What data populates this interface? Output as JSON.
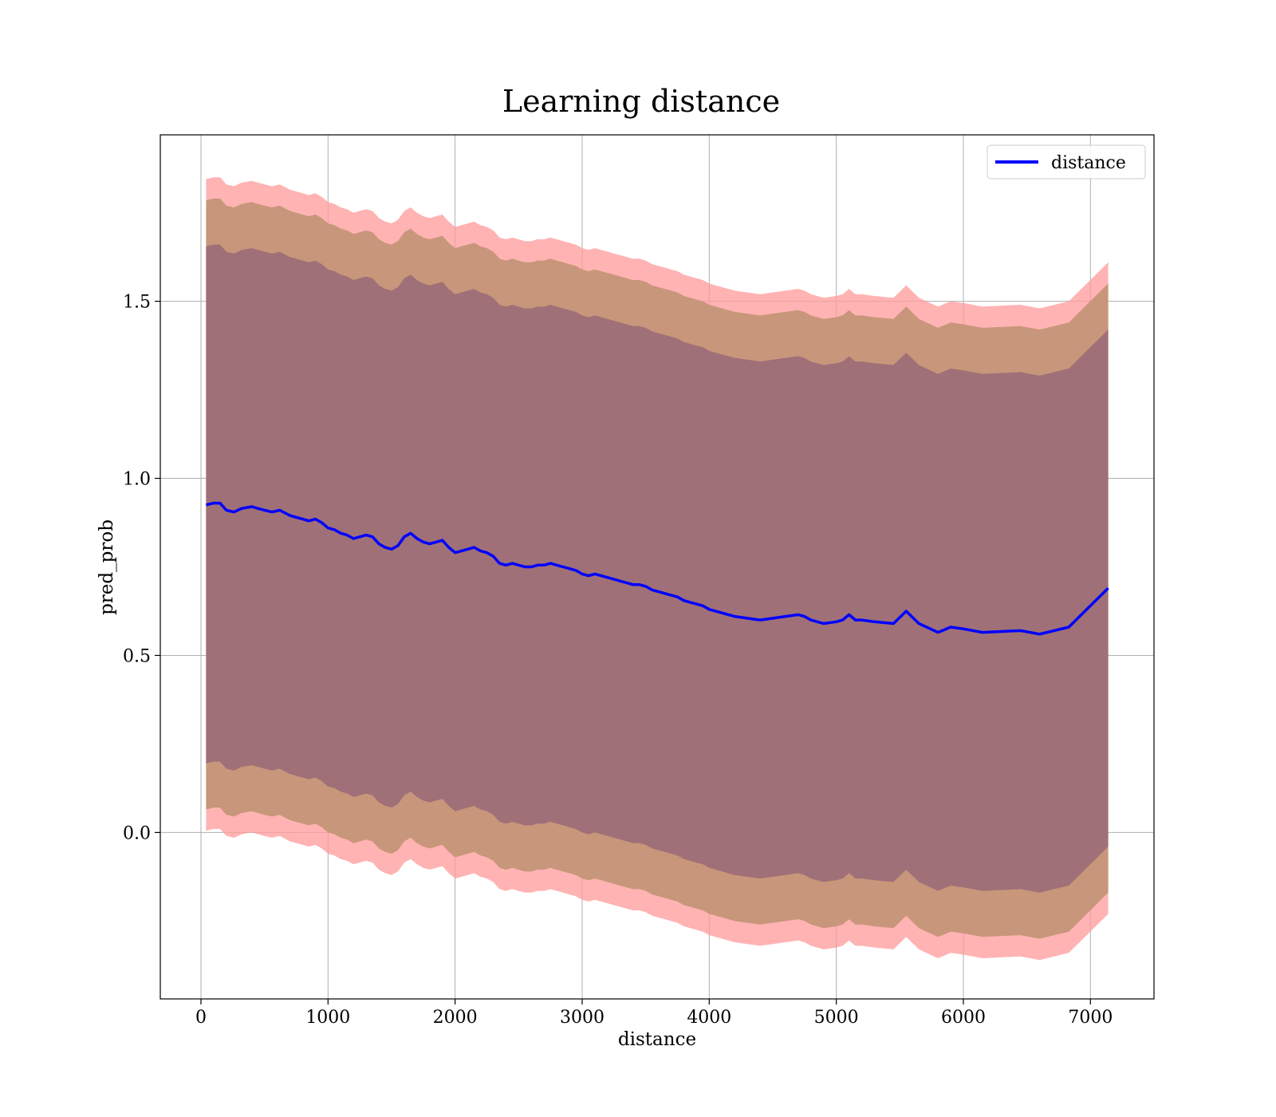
{
  "chart_data": {
    "type": "line",
    "title": "Learning distance",
    "xlabel": "distance",
    "ylabel": "pred_prob",
    "xlim": [
      -320,
      7500
    ],
    "ylim": [
      -0.47,
      1.97
    ],
    "xticks": [
      0,
      1000,
      2000,
      3000,
      4000,
      5000,
      6000,
      7000
    ],
    "yticks": [
      0.0,
      0.5,
      1.0,
      1.5
    ],
    "grid": true,
    "legend": {
      "placement": "top-right",
      "entries": [
        "distance"
      ]
    },
    "colors": {
      "line": "#0000ff",
      "band_outer": "#ff9999",
      "band_middle": "#c8967a",
      "band_inner": "#a07078"
    },
    "x": [
      40,
      100,
      150,
      200,
      260,
      320,
      400,
      450,
      500,
      560,
      620,
      700,
      750,
      800,
      850,
      900,
      950,
      1000,
      1050,
      1100,
      1150,
      1200,
      1250,
      1300,
      1350,
      1400,
      1450,
      1500,
      1550,
      1600,
      1650,
      1700,
      1750,
      1800,
      1850,
      1900,
      1950,
      2000,
      2050,
      2100,
      2150,
      2200,
      2250,
      2300,
      2350,
      2400,
      2450,
      2500,
      2550,
      2600,
      2650,
      2700,
      2750,
      2800,
      2850,
      2900,
      2950,
      3000,
      3050,
      3100,
      3150,
      3200,
      3250,
      3300,
      3350,
      3400,
      3450,
      3500,
      3550,
      3600,
      3650,
      3700,
      3750,
      3800,
      3850,
      3900,
      3950,
      4000,
      4100,
      4200,
      4300,
      4400,
      4500,
      4600,
      4700,
      4750,
      4800,
      4900,
      5000,
      5050,
      5100,
      5150,
      5200,
      5300,
      5450,
      5550,
      5650,
      5800,
      5900,
      6000,
      6150,
      6450,
      6600,
      6830,
      7140
    ],
    "series": [
      {
        "name": "distance",
        "values": [
          0.925,
          0.93,
          0.93,
          0.91,
          0.905,
          0.915,
          0.92,
          0.915,
          0.91,
          0.905,
          0.91,
          0.895,
          0.89,
          0.885,
          0.88,
          0.885,
          0.875,
          0.86,
          0.855,
          0.845,
          0.84,
          0.83,
          0.835,
          0.84,
          0.835,
          0.815,
          0.805,
          0.8,
          0.81,
          0.835,
          0.845,
          0.83,
          0.82,
          0.815,
          0.82,
          0.825,
          0.805,
          0.79,
          0.795,
          0.8,
          0.805,
          0.795,
          0.79,
          0.78,
          0.76,
          0.755,
          0.76,
          0.755,
          0.75,
          0.75,
          0.755,
          0.755,
          0.76,
          0.755,
          0.75,
          0.745,
          0.74,
          0.73,
          0.725,
          0.73,
          0.725,
          0.72,
          0.715,
          0.71,
          0.705,
          0.7,
          0.7,
          0.695,
          0.685,
          0.68,
          0.675,
          0.67,
          0.665,
          0.655,
          0.65,
          0.645,
          0.64,
          0.63,
          0.62,
          0.61,
          0.605,
          0.6,
          0.605,
          0.61,
          0.615,
          0.61,
          0.6,
          0.59,
          0.595,
          0.6,
          0.615,
          0.6,
          0.6,
          0.595,
          0.59,
          0.625,
          0.59,
          0.565,
          0.58,
          0.575,
          0.565,
          0.57,
          0.56,
          0.58,
          0.69
        ]
      }
    ],
    "bands": [
      {
        "level": "outer",
        "half_width": 0.92
      },
      {
        "level": "middle",
        "half_width": 0.86
      },
      {
        "level": "inner",
        "half_width": 0.73
      }
    ]
  }
}
